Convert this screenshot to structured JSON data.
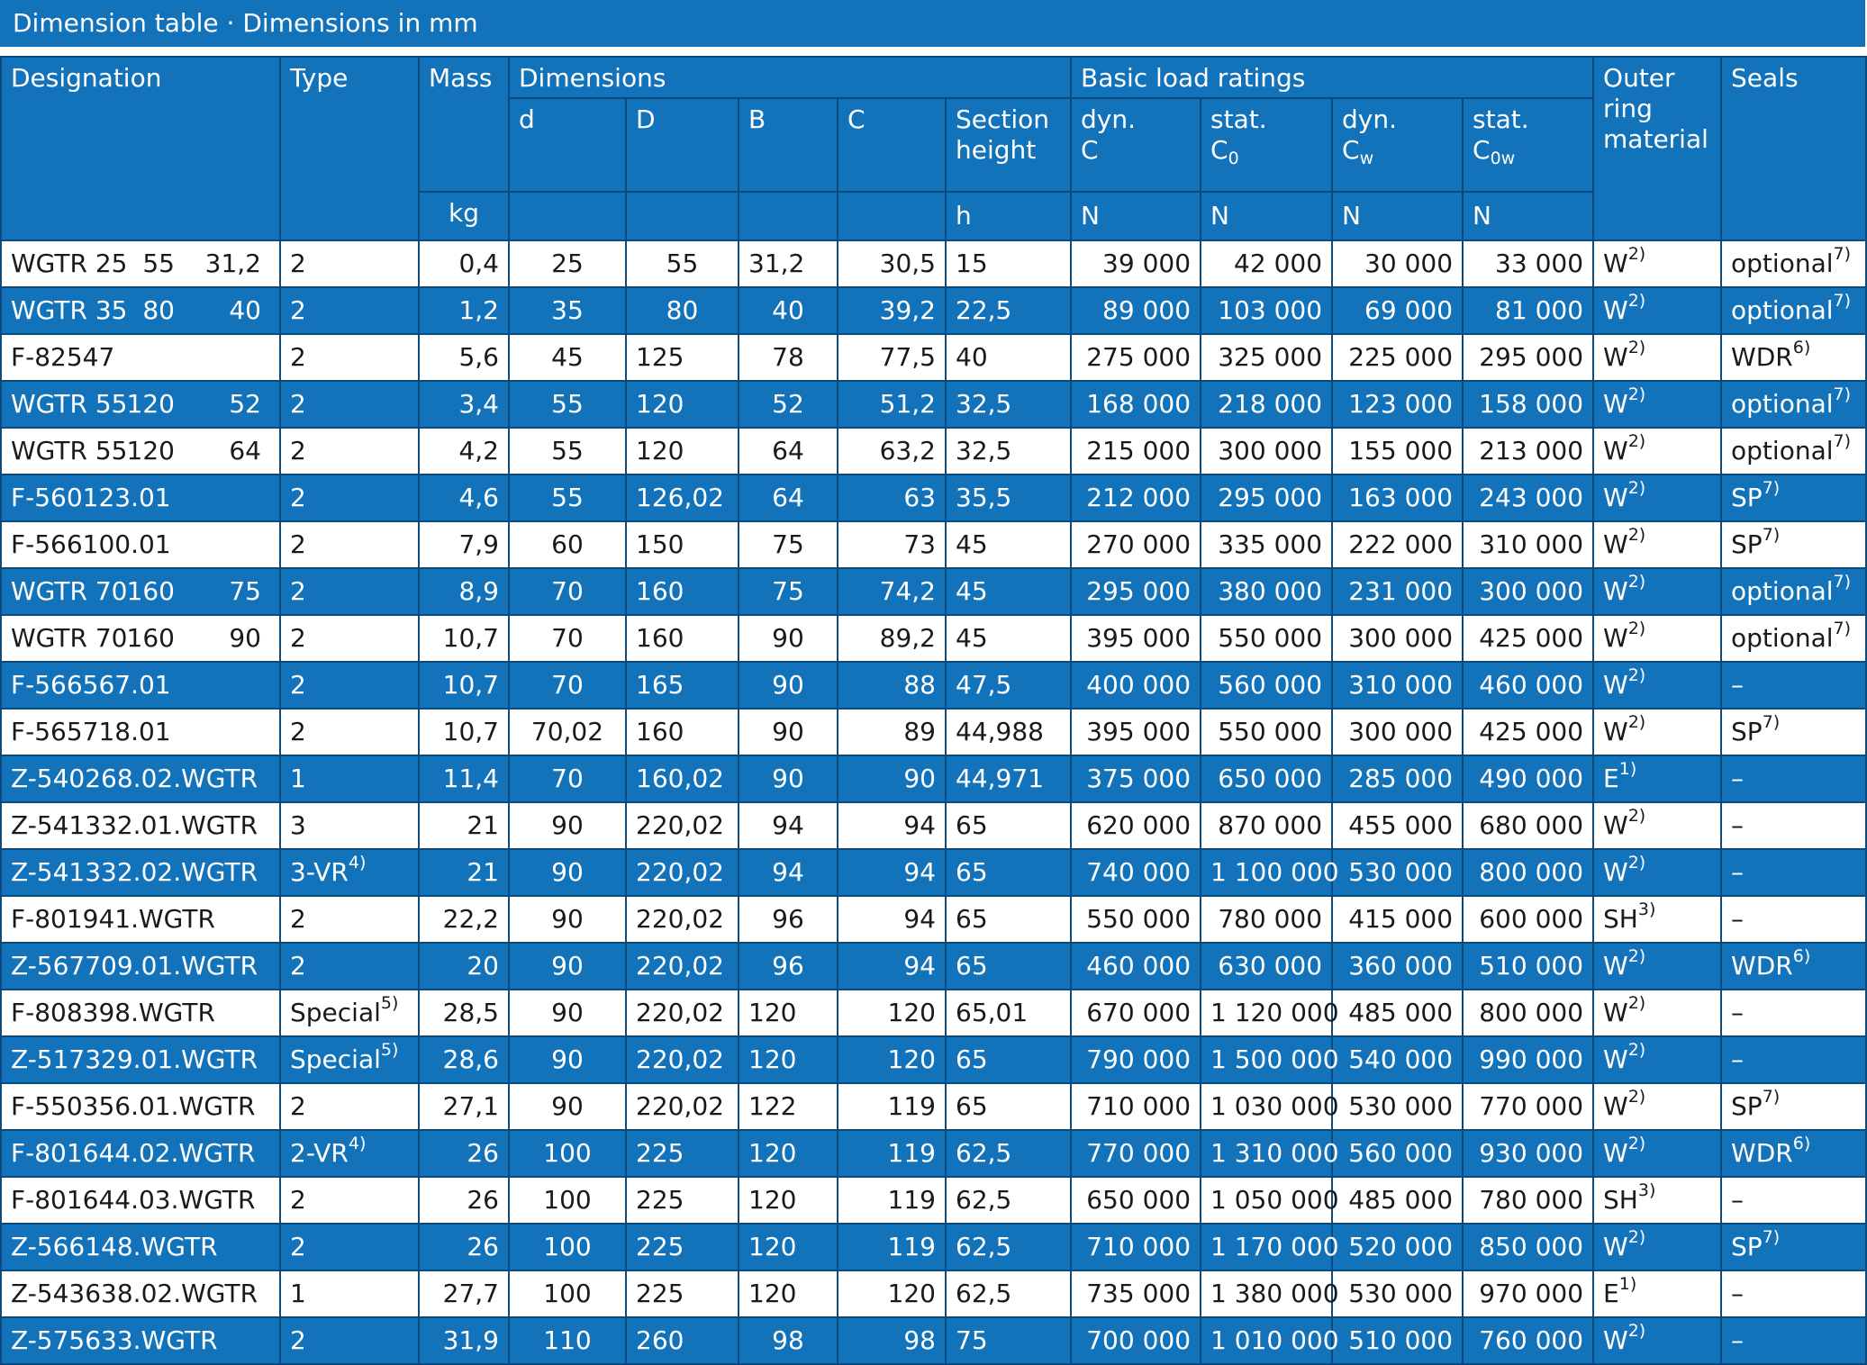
{
  "title": "Dimension table · Dimensions in mm",
  "header": {
    "designation": "Designation",
    "type": "Type",
    "mass": "Mass",
    "mass_unit": "kg",
    "dimensions": "Dimensions",
    "d": "d",
    "D": "D",
    "B": "B",
    "C": "C",
    "section_height_1": "Section",
    "section_height_2": "height",
    "section_height_unit": "h",
    "basic_load_ratings": "Basic load ratings",
    "dyn": "dyn.",
    "stat": "stat.",
    "dyn_C": "C",
    "stat_C0_base": "C",
    "stat_C0_sub": "0",
    "dyn_Cw_base": "C",
    "dyn_Cw_sub": "w",
    "stat_C0w_base": "C",
    "stat_C0w_sub": "0w",
    "unit_N": "N",
    "outer_ring_material_1": "Outer",
    "outer_ring_material_2": "ring",
    "outer_ring_material_3": "material",
    "seals": "Seals"
  },
  "rows": [
    {
      "style": "white",
      "designation": "",
      "desig_parts": [
        "WGTR 25",
        "55",
        "31,2"
      ],
      "type": "2",
      "type_sup": "",
      "mass": "0,4",
      "d": "25",
      "D": "55",
      "B": "31,2",
      "C": "30,5",
      "h": "15",
      "dynC": "39 000",
      "statC0": "42 000",
      "dynCw": "30 000",
      "statC0w": "33 000",
      "material": "W",
      "material_sup": "2)",
      "seals": "optional",
      "seals_sup": "7)"
    },
    {
      "style": "blue",
      "designation": "",
      "desig_parts": [
        "WGTR 35",
        "80",
        "40"
      ],
      "type": "2",
      "type_sup": "",
      "mass": "1,2",
      "d": "35",
      "D": "80",
      "B": "40",
      "C": "39,2",
      "h": "22,5",
      "dynC": "89 000",
      "statC0": "103 000",
      "dynCw": "69 000",
      "statC0w": "81 000",
      "material": "W",
      "material_sup": "2)",
      "seals": "optional",
      "seals_sup": "7)"
    },
    {
      "style": "white",
      "designation": "F-82547",
      "desig_parts": [],
      "type": "2",
      "type_sup": "",
      "mass": "5,6",
      "d": "45",
      "D": "125",
      "B": "78",
      "C": "77,5",
      "h": "40",
      "dynC": "275 000",
      "statC0": "325 000",
      "dynCw": "225 000",
      "statC0w": "295 000",
      "material": "W",
      "material_sup": "2)",
      "seals": "WDR",
      "seals_sup": "6)"
    },
    {
      "style": "blue",
      "designation": "",
      "desig_parts": [
        "WGTR 55",
        "120",
        "52"
      ],
      "type": "2",
      "type_sup": "",
      "mass": "3,4",
      "d": "55",
      "D": "120",
      "B": "52",
      "C": "51,2",
      "h": "32,5",
      "dynC": "168 000",
      "statC0": "218 000",
      "dynCw": "123 000",
      "statC0w": "158 000",
      "material": "W",
      "material_sup": "2)",
      "seals": "optional",
      "seals_sup": "7)"
    },
    {
      "style": "white",
      "designation": "",
      "desig_parts": [
        "WGTR 55",
        "120",
        "64"
      ],
      "type": "2",
      "type_sup": "",
      "mass": "4,2",
      "d": "55",
      "D": "120",
      "B": "64",
      "C": "63,2",
      "h": "32,5",
      "dynC": "215 000",
      "statC0": "300 000",
      "dynCw": "155 000",
      "statC0w": "213 000",
      "material": "W",
      "material_sup": "2)",
      "seals": "optional",
      "seals_sup": "7)"
    },
    {
      "style": "blue",
      "designation": "F-560123.01",
      "desig_parts": [],
      "type": "2",
      "type_sup": "",
      "mass": "4,6",
      "d": "55",
      "D": "126,02",
      "B": "64",
      "C": "63",
      "h": "35,5",
      "dynC": "212 000",
      "statC0": "295 000",
      "dynCw": "163 000",
      "statC0w": "243 000",
      "material": "W",
      "material_sup": "2)",
      "seals": "SP",
      "seals_sup": "7)"
    },
    {
      "style": "white",
      "designation": "F-566100.01",
      "desig_parts": [],
      "type": "2",
      "type_sup": "",
      "mass": "7,9",
      "d": "60",
      "D": "150",
      "B": "75",
      "C": "73",
      "h": "45",
      "dynC": "270 000",
      "statC0": "335 000",
      "dynCw": "222 000",
      "statC0w": "310 000",
      "material": "W",
      "material_sup": "2)",
      "seals": "SP",
      "seals_sup": "7)"
    },
    {
      "style": "blue",
      "designation": "",
      "desig_parts": [
        "WGTR 70",
        "160",
        "75"
      ],
      "type": "2",
      "type_sup": "",
      "mass": "8,9",
      "d": "70",
      "D": "160",
      "B": "75",
      "C": "74,2",
      "h": "45",
      "dynC": "295 000",
      "statC0": "380 000",
      "dynCw": "231 000",
      "statC0w": "300 000",
      "material": "W",
      "material_sup": "2)",
      "seals": "optional",
      "seals_sup": "7)"
    },
    {
      "style": "white",
      "designation": "",
      "desig_parts": [
        "WGTR 70",
        "160",
        "90"
      ],
      "type": "2",
      "type_sup": "",
      "mass": "10,7",
      "d": "70",
      "D": "160",
      "B": "90",
      "C": "89,2",
      "h": "45",
      "dynC": "395 000",
      "statC0": "550 000",
      "dynCw": "300 000",
      "statC0w": "425 000",
      "material": "W",
      "material_sup": "2)",
      "seals": "optional",
      "seals_sup": "7)"
    },
    {
      "style": "blue",
      "designation": "F-566567.01",
      "desig_parts": [],
      "type": "2",
      "type_sup": "",
      "mass": "10,7",
      "d": "70",
      "D": "165",
      "B": "90",
      "C": "88",
      "h": "47,5",
      "dynC": "400 000",
      "statC0": "560 000",
      "dynCw": "310 000",
      "statC0w": "460 000",
      "material": "W",
      "material_sup": "2)",
      "seals": "–",
      "seals_sup": ""
    },
    {
      "style": "white",
      "designation": "F-565718.01",
      "desig_parts": [],
      "type": "2",
      "type_sup": "",
      "mass": "10,7",
      "d": "70,02",
      "D": "160",
      "B": "90",
      "C": "89",
      "h": "44,988",
      "dynC": "395 000",
      "statC0": "550 000",
      "dynCw": "300 000",
      "statC0w": "425 000",
      "material": "W",
      "material_sup": "2)",
      "seals": "SP",
      "seals_sup": "7)"
    },
    {
      "style": "blue",
      "designation": "Z-540268.02.WGTR",
      "desig_parts": [],
      "type": "1",
      "type_sup": "",
      "mass": "11,4",
      "d": "70",
      "D": "160,02",
      "B": "90",
      "C": "90",
      "h": "44,971",
      "dynC": "375 000",
      "statC0": "650 000",
      "dynCw": "285 000",
      "statC0w": "490 000",
      "material": "E",
      "material_sup": "1)",
      "seals": "–",
      "seals_sup": ""
    },
    {
      "style": "white",
      "designation": "Z-541332.01.WGTR",
      "desig_parts": [],
      "type": "3",
      "type_sup": "",
      "mass": "21",
      "d": "90",
      "D": "220,02",
      "B": "94",
      "C": "94",
      "h": "65",
      "dynC": "620 000",
      "statC0": "870 000",
      "dynCw": "455 000",
      "statC0w": "680 000",
      "material": "W",
      "material_sup": "2)",
      "seals": "–",
      "seals_sup": ""
    },
    {
      "style": "blue",
      "designation": "Z-541332.02.WGTR",
      "desig_parts": [],
      "type": "3-VR",
      "type_sup": "4)",
      "mass": "21",
      "d": "90",
      "D": "220,02",
      "B": "94",
      "C": "94",
      "h": "65",
      "dynC": "740 000",
      "statC0": "1 100 000",
      "dynCw": "530 000",
      "statC0w": "800 000",
      "material": "W",
      "material_sup": "2)",
      "seals": "–",
      "seals_sup": ""
    },
    {
      "style": "white",
      "designation": "F-801941.WGTR",
      "desig_parts": [],
      "type": "2",
      "type_sup": "",
      "mass": "22,2",
      "d": "90",
      "D": "220,02",
      "B": "96",
      "C": "94",
      "h": "65",
      "dynC": "550 000",
      "statC0": "780 000",
      "dynCw": "415 000",
      "statC0w": "600 000",
      "material": "SH",
      "material_sup": "3)",
      "seals": "–",
      "seals_sup": ""
    },
    {
      "style": "blue",
      "designation": "Z-567709.01.WGTR",
      "desig_parts": [],
      "type": "2",
      "type_sup": "",
      "mass": "20",
      "d": "90",
      "D": "220,02",
      "B": "96",
      "C": "94",
      "h": "65",
      "dynC": "460 000",
      "statC0": "630 000",
      "dynCw": "360 000",
      "statC0w": "510 000",
      "material": "W",
      "material_sup": "2)",
      "seals": "WDR",
      "seals_sup": "6)"
    },
    {
      "style": "white",
      "designation": "F-808398.WGTR",
      "desig_parts": [],
      "type": "Special",
      "type_sup": "5)",
      "mass": "28,5",
      "d": "90",
      "D": "220,02",
      "B": "120",
      "C": "120",
      "h": "65,01",
      "dynC": "670 000",
      "statC0": "1 120 000",
      "dynCw": "485 000",
      "statC0w": "800 000",
      "material": "W",
      "material_sup": "2)",
      "seals": "–",
      "seals_sup": ""
    },
    {
      "style": "blue",
      "designation": "Z-517329.01.WGTR",
      "desig_parts": [],
      "type": "Special",
      "type_sup": "5)",
      "mass": "28,6",
      "d": "90",
      "D": "220,02",
      "B": "120",
      "C": "120",
      "h": "65",
      "dynC": "790 000",
      "statC0": "1 500 000",
      "dynCw": "540 000",
      "statC0w": "990 000",
      "material": "W",
      "material_sup": "2)",
      "seals": "–",
      "seals_sup": ""
    },
    {
      "style": "white",
      "designation": "F-550356.01.WGTR",
      "desig_parts": [],
      "type": "2",
      "type_sup": "",
      "mass": "27,1",
      "d": "90",
      "D": "220,02",
      "B": "122",
      "C": "119",
      "h": "65",
      "dynC": "710 000",
      "statC0": "1 030 000",
      "dynCw": "530 000",
      "statC0w": "770 000",
      "material": "W",
      "material_sup": "2)",
      "seals": "SP",
      "seals_sup": "7)"
    },
    {
      "style": "blue",
      "designation": "F-801644.02.WGTR",
      "desig_parts": [],
      "type": "2-VR",
      "type_sup": "4)",
      "mass": "26",
      "d": "100",
      "D": "225",
      "B": "120",
      "C": "119",
      "h": "62,5",
      "dynC": "770 000",
      "statC0": "1 310 000",
      "dynCw": "560 000",
      "statC0w": "930 000",
      "material": "W",
      "material_sup": "2)",
      "seals": "WDR",
      "seals_sup": "6)"
    },
    {
      "style": "white",
      "designation": "F-801644.03.WGTR",
      "desig_parts": [],
      "type": "2",
      "type_sup": "",
      "mass": "26",
      "d": "100",
      "D": "225",
      "B": "120",
      "C": "119",
      "h": "62,5",
      "dynC": "650 000",
      "statC0": "1 050 000",
      "dynCw": "485 000",
      "statC0w": "780 000",
      "material": "SH",
      "material_sup": "3)",
      "seals": "–",
      "seals_sup": ""
    },
    {
      "style": "blue",
      "designation": "Z-566148.WGTR",
      "desig_parts": [],
      "type": "2",
      "type_sup": "",
      "mass": "26",
      "d": "100",
      "D": "225",
      "B": "120",
      "C": "119",
      "h": "62,5",
      "dynC": "710 000",
      "statC0": "1 170 000",
      "dynCw": "520 000",
      "statC0w": "850 000",
      "material": "W",
      "material_sup": "2)",
      "seals": "SP",
      "seals_sup": "7)"
    },
    {
      "style": "white",
      "designation": "Z-543638.02.WGTR",
      "desig_parts": [],
      "type": "1",
      "type_sup": "",
      "mass": "27,7",
      "d": "100",
      "D": "225",
      "B": "120",
      "C": "120",
      "h": "62,5",
      "dynC": "735 000",
      "statC0": "1 380 000",
      "dynCw": "530 000",
      "statC0w": "970 000",
      "material": "E",
      "material_sup": "1)",
      "seals": "–",
      "seals_sup": ""
    },
    {
      "style": "blue",
      "designation": "Z-575633.WGTR",
      "desig_parts": [],
      "type": "2",
      "type_sup": "",
      "mass": "31,9",
      "d": "110",
      "D": "260",
      "B": "98",
      "C": "98",
      "h": "75",
      "dynC": "700 000",
      "statC0": "1 010 000",
      "dynCw": "510 000",
      "statC0w": "760 000",
      "material": "W",
      "material_sup": "2)",
      "seals": "–",
      "seals_sup": ""
    }
  ]
}
